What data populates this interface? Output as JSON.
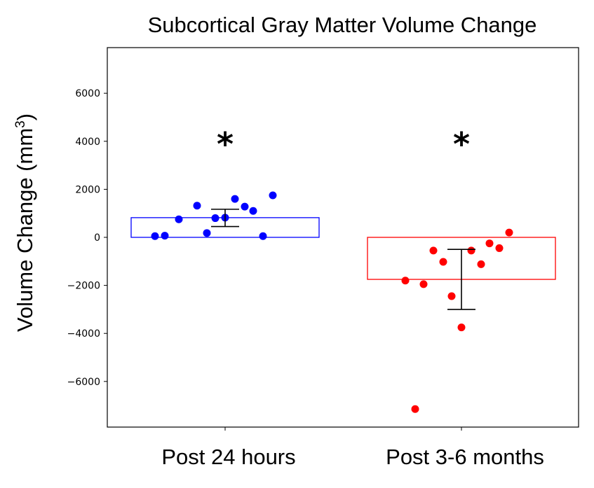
{
  "chart_data": {
    "type": "scatter",
    "title": "Subcortical Gray Matter Volume Change",
    "ylabel": "Volume Change (mm",
    "ylabel_sup": "3",
    "ylabel_close": ")",
    "xlabel": "",
    "ylim": [
      -7900,
      7900
    ],
    "yticks": [
      6000,
      4000,
      2000,
      0,
      -2000,
      -4000,
      -6000
    ],
    "ytick_labels": [
      "6000",
      "4000",
      "2000",
      "0",
      "−2000",
      "−4000",
      "−6000"
    ],
    "categories": [
      "Post 24 hours",
      "Post 3-6 months"
    ],
    "significance_marker": "*",
    "series": [
      {
        "name": "Post 24 hours",
        "color": "#0000ff",
        "bar_value": 820,
        "error_low": 450,
        "error_high": 1170,
        "points": [
          {
            "x": -0.5,
            "y": 50
          },
          {
            "x": -0.43,
            "y": 70
          },
          {
            "x": -0.33,
            "y": 750
          },
          {
            "x": -0.2,
            "y": 1320
          },
          {
            "x": -0.13,
            "y": 180
          },
          {
            "x": -0.07,
            "y": 800
          },
          {
            "x": 0.0,
            "y": 820
          },
          {
            "x": 0.07,
            "y": 1600
          },
          {
            "x": 0.14,
            "y": 1280
          },
          {
            "x": 0.2,
            "y": 1100
          },
          {
            "x": 0.27,
            "y": 50
          },
          {
            "x": 0.34,
            "y": 1750
          }
        ]
      },
      {
        "name": "Post 3-6 months",
        "color": "#ff0000",
        "bar_value": -1750,
        "error_low": -3000,
        "error_high": -500,
        "points": [
          {
            "x": -0.4,
            "y": -1800
          },
          {
            "x": -0.33,
            "y": -7150
          },
          {
            "x": -0.27,
            "y": -1950
          },
          {
            "x": -0.2,
            "y": -550
          },
          {
            "x": -0.13,
            "y": -1020
          },
          {
            "x": -0.07,
            "y": -2450
          },
          {
            "x": 0.0,
            "y": -3750
          },
          {
            "x": 0.07,
            "y": -550
          },
          {
            "x": 0.14,
            "y": -1120
          },
          {
            "x": 0.2,
            "y": -250
          },
          {
            "x": 0.27,
            "y": -450
          },
          {
            "x": 0.34,
            "y": 200
          }
        ]
      }
    ]
  }
}
